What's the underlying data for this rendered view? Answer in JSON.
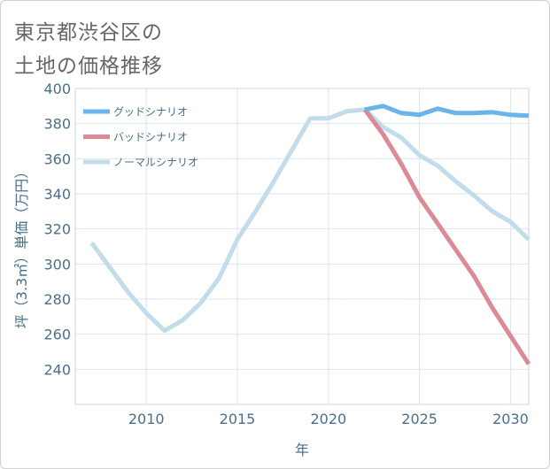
{
  "title_lines": [
    "東京都渋谷区の",
    "土地の価格推移"
  ],
  "chart_data": {
    "type": "line",
    "title": "東京都渋谷区の土地の価格推移",
    "xlabel": "年",
    "ylabel": "坪（3.3㎡）単価（万円）",
    "xlim": [
      2006.1,
      2031
    ],
    "ylim": [
      220,
      400
    ],
    "x_ticks": [
      2010,
      2015,
      2020,
      2025,
      2030
    ],
    "y_ticks": [
      240,
      260,
      280,
      300,
      320,
      340,
      360,
      380,
      400
    ],
    "grid": true,
    "legend_position": "top-left",
    "series": [
      {
        "name": "グッドシナリオ",
        "color": "#6ab4ea",
        "x": [
          2022,
          2023,
          2024,
          2025,
          2026,
          2027,
          2028,
          2029,
          2030,
          2031
        ],
        "values": [
          388,
          390,
          386,
          385,
          388.5,
          386,
          386,
          386.5,
          385,
          384.5
        ]
      },
      {
        "name": "バッドシナリオ",
        "color": "#dc8a96",
        "x": [
          2022,
          2023,
          2024,
          2025,
          2026,
          2027,
          2028,
          2029,
          2030,
          2031
        ],
        "values": [
          388,
          374,
          357,
          338,
          323,
          308,
          293,
          275,
          259,
          243
        ]
      },
      {
        "name": "ノーマルシナリオ",
        "color": "#c2dcea",
        "x": [
          2007,
          2008,
          2009,
          2010,
          2011,
          2012,
          2013,
          2014,
          2015,
          2016,
          2017,
          2018,
          2019,
          2020,
          2021,
          2022,
          2023,
          2024,
          2025,
          2026,
          2027,
          2028,
          2029,
          2030,
          2031
        ],
        "values": [
          312,
          298,
          284,
          272,
          262,
          268,
          278,
          292,
          314,
          330,
          347,
          365,
          383,
          383,
          387,
          388,
          378,
          372,
          362,
          356,
          347,
          339,
          330,
          324,
          314
        ]
      }
    ]
  }
}
